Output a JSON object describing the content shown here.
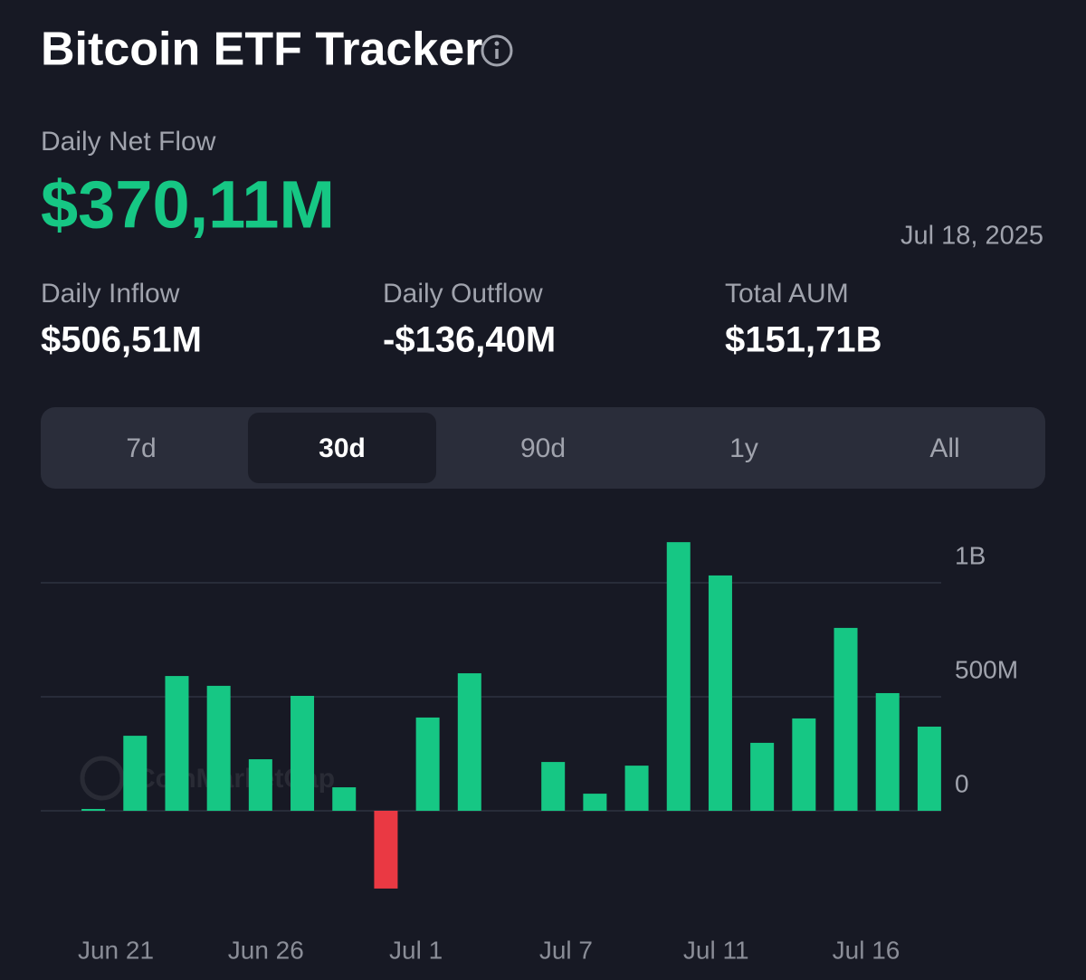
{
  "header": {
    "title": "Bitcoin ETF Tracker"
  },
  "net_flow": {
    "label": "Daily Net Flow",
    "value": "$370,11M",
    "date": "Jul 18, 2025"
  },
  "stats": [
    {
      "label": "Daily Inflow",
      "value": "$506,51M"
    },
    {
      "label": "Daily Outflow",
      "value": "-$136,40M"
    },
    {
      "label": "Total AUM",
      "value": "$151,71B"
    }
  ],
  "tabs": {
    "items": [
      "7d",
      "30d",
      "90d",
      "1y",
      "All"
    ],
    "active": 1
  },
  "watermark": "CoinMarketCap",
  "chart_data": {
    "type": "bar",
    "categories": [
      null,
      null,
      null,
      null,
      null,
      null,
      null,
      null,
      null,
      null,
      null,
      null,
      null,
      null,
      null,
      null,
      null,
      null,
      null,
      null,
      null
    ],
    "x_labels": [
      "Jun 21",
      "Jun 26",
      "Jul 1",
      "Jul 7",
      "Jul 11",
      "Jul 16"
    ],
    "values": [
      8,
      329,
      591,
      548,
      226,
      504,
      103,
      -341,
      409,
      603,
      null,
      214,
      75,
      198,
      1178,
      1032,
      298,
      405,
      802,
      516,
      369
    ],
    "positive_color": "#16c784",
    "negative_color": "#ea3943",
    "ylim": [
      -400,
      1200
    ],
    "yticks": [
      0,
      {
        "value": 500,
        "label": "500M"
      },
      {
        "value": 1000,
        "label": "1B"
      }
    ],
    "grid": true
  }
}
